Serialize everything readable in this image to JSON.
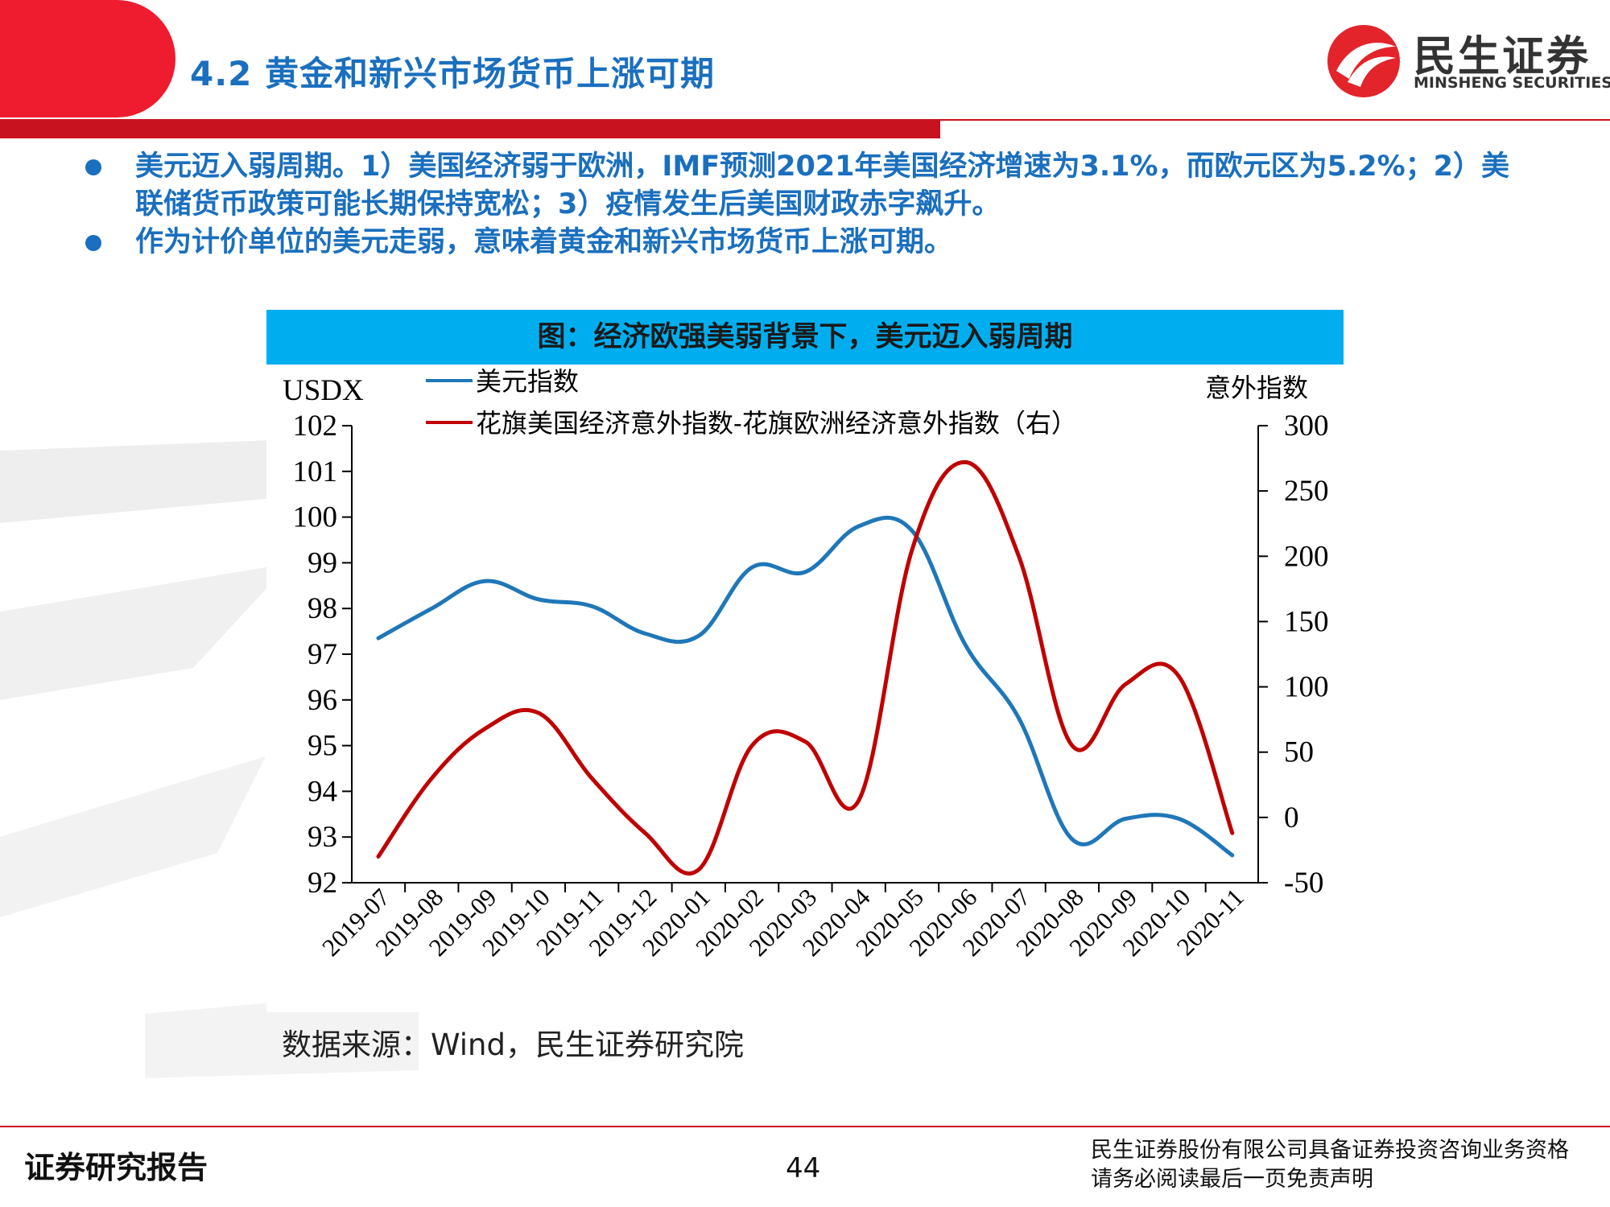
{
  "header": {
    "title": "4.2 黄金和新兴市场货币上涨可期",
    "logo_cn": "民生证券",
    "logo_en": "MINSHENG SECURITIES"
  },
  "bullets": [
    "美元迈入弱周期。1）美国经济弱于欧洲，IMF预测2021年美国经济增速为3.1%，而欧元区为5.2%；2）美联储货币政策可能长期保持宽松；3）疫情发生后美国财政赤字飙升。",
    "作为计价单位的美元走弱，意味着黄金和新兴市场货币上涨可期。"
  ],
  "chart_title": "图：经济欧强美弱背景下，美元迈入弱周期",
  "source": "数据来源：Wind，民生证券研究院",
  "footer": {
    "left": "证券研究报告",
    "page": "44",
    "right_line1": "民生证券股份有限公司具备证券投资咨询业务资格",
    "right_line2": "请务必阅读最后一页免责声明"
  },
  "colors": {
    "brand_red": "#ee1c2e",
    "title_blue": "#1a6fbe",
    "chart_title_bg": "#00aeef",
    "series_blue": "#1f77b8",
    "series_red": "#c00000"
  },
  "chart_data": {
    "type": "line",
    "title": "图：经济欧强美弱背景下，美元迈入弱周期",
    "ylabel_left": "USDX",
    "ylabel_right": "意外指数",
    "ylim_left": [
      92,
      102
    ],
    "ylim_right": [
      -50,
      300
    ],
    "yticks_left": [
      "102",
      "101",
      "100",
      "99",
      "98",
      "97",
      "96",
      "95",
      "94",
      "93",
      "92"
    ],
    "yticks_right": [
      "300",
      "250",
      "200",
      "150",
      "100",
      "50",
      "0",
      "-50"
    ],
    "categories": [
      "2019-07",
      "2019-08",
      "2019-09",
      "2019-10",
      "2019-11",
      "2019-12",
      "2020-01",
      "2020-02",
      "2020-03",
      "2020-04",
      "2020-05",
      "2020-06",
      "2020-07",
      "2020-08",
      "2020-09",
      "2020-10",
      "2020-11"
    ],
    "series": [
      {
        "name": "美元指数",
        "axis": "left",
        "color": "#1f77b8",
        "values": [
          97.35,
          98.0,
          98.6,
          98.2,
          98.05,
          97.45,
          97.4,
          98.9,
          98.8,
          99.8,
          99.7,
          97.2,
          95.6,
          92.95,
          93.4,
          93.4,
          92.6
        ]
      },
      {
        "name": "花旗美国经济意外指数-花旗欧洲经济意外指数（右）",
        "axis": "right",
        "color": "#c00000",
        "values": [
          -30,
          30,
          68,
          80,
          30,
          -12,
          -40,
          55,
          58,
          13,
          205,
          272,
          200,
          55,
          102,
          108,
          -12
        ]
      }
    ],
    "legend_position": "top-left"
  }
}
